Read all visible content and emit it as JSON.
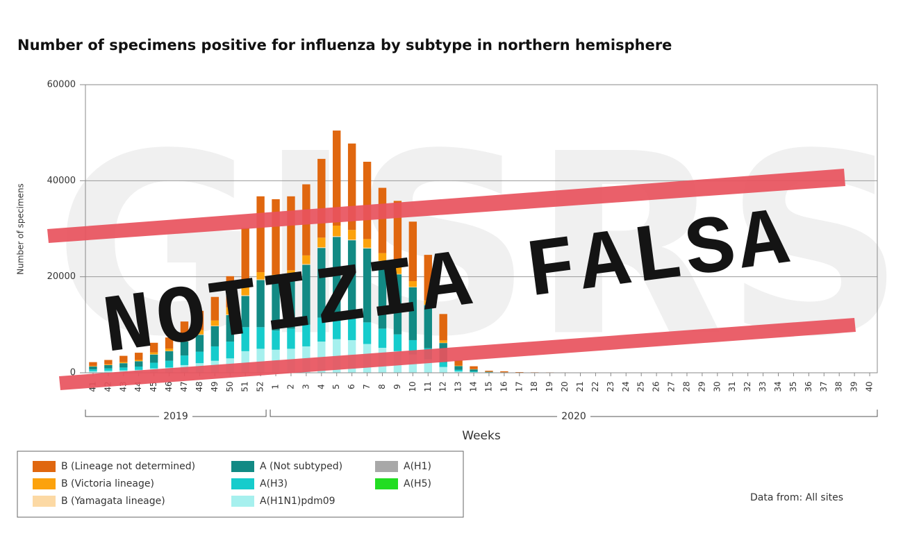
{
  "chart_data": {
    "type": "stacked_bar",
    "title": "Number of specimens positive for influenza by subtype in northern hemisphere",
    "watermark": "GISRS",
    "stamp": "NOTIZIA FALSA",
    "ylabel": "Number of specimens",
    "xlabel": "Weeks",
    "source": "Data from: All sites",
    "categories": [
      "41",
      "42",
      "43",
      "44",
      "45",
      "46",
      "47",
      "48",
      "49",
      "50",
      "51",
      "52",
      "1",
      "2",
      "3",
      "4",
      "5",
      "6",
      "7",
      "8",
      "9",
      "10",
      "11",
      "12",
      "13",
      "14",
      "15",
      "16",
      "17",
      "18",
      "19",
      "20",
      "21",
      "22",
      "23",
      "24",
      "25",
      "26",
      "27",
      "28",
      "29",
      "30",
      "31",
      "32",
      "33",
      "34",
      "35",
      "36",
      "37",
      "38",
      "39",
      "40"
    ],
    "year_groups": [
      {
        "label": "2019",
        "first": "41",
        "last": "52"
      },
      {
        "label": "2020",
        "first": "1",
        "last": "40"
      }
    ],
    "ylim": [
      0,
      60000
    ],
    "yticks": [
      0,
      20000,
      40000,
      60000
    ],
    "grid": true,
    "series": [
      {
        "name": "A(H1N1)pdm09",
        "color": "#a6f0ee",
        "values": [
          300,
          400,
          500,
          600,
          900,
          1100,
          1600,
          2000,
          2500,
          3000,
          4500,
          5000,
          4800,
          5000,
          5500,
          6500,
          7000,
          6800,
          6000,
          5200,
          4500,
          3800,
          2800,
          1200,
          300,
          150,
          50,
          30,
          20,
          10,
          10,
          10,
          0,
          0,
          0,
          0,
          0,
          0,
          0,
          0,
          0,
          0,
          0,
          0,
          0,
          0,
          0,
          0,
          0,
          0,
          0,
          0
        ]
      },
      {
        "name": "A(H3)",
        "color": "#16cccc",
        "values": [
          400,
          500,
          600,
          700,
          1200,
          1400,
          2000,
          2400,
          3000,
          3500,
          5000,
          4500,
          4000,
          4200,
          4500,
          5000,
          5500,
          5000,
          4500,
          4000,
          3500,
          3000,
          2300,
          1000,
          300,
          150,
          50,
          20,
          10,
          10,
          5,
          5,
          0,
          0,
          0,
          0,
          0,
          0,
          0,
          0,
          0,
          0,
          0,
          0,
          0,
          0,
          0,
          0,
          0,
          0,
          0,
          0
        ]
      },
      {
        "name": "A (Not subtyped)",
        "color": "#128a84",
        "values": [
          600,
          700,
          900,
          1100,
          1700,
          2000,
          2900,
          3500,
          4200,
          5500,
          6500,
          9800,
          10000,
          10500,
          12500,
          14500,
          15800,
          15800,
          15400,
          14000,
          12500,
          11000,
          9000,
          4000,
          800,
          400,
          100,
          50,
          30,
          20,
          20,
          20,
          0,
          0,
          0,
          0,
          0,
          0,
          0,
          0,
          0,
          0,
          0,
          0,
          0,
          0,
          0,
          0,
          0,
          0,
          0,
          0
        ]
      },
      {
        "name": "B (Yamagata lineage)",
        "color": "#fcd9a4",
        "values": [
          20,
          20,
          30,
          30,
          50,
          50,
          80,
          100,
          100,
          120,
          150,
          150,
          150,
          150,
          150,
          150,
          150,
          150,
          150,
          120,
          100,
          80,
          60,
          40,
          10,
          10,
          5,
          0,
          0,
          0,
          0,
          0,
          0,
          0,
          0,
          0,
          0,
          0,
          0,
          0,
          0,
          0,
          0,
          0,
          0,
          0,
          0,
          0,
          0,
          0,
          0,
          0
        ]
      },
      {
        "name": "B (Victoria lineage)",
        "color": "#fca20c",
        "values": [
          100,
          150,
          200,
          250,
          400,
          500,
          700,
          900,
          1100,
          1500,
          2000,
          1500,
          1500,
          1500,
          1800,
          2000,
          2200,
          2000,
          1800,
          1600,
          1400,
          1200,
          900,
          500,
          100,
          50,
          20,
          10,
          5,
          0,
          0,
          0,
          0,
          0,
          0,
          0,
          0,
          0,
          0,
          0,
          0,
          0,
          0,
          0,
          0,
          0,
          0,
          0,
          0,
          0,
          0,
          0
        ]
      },
      {
        "name": "B (Lineage not determined)",
        "color": "#e0670f",
        "values": [
          800,
          900,
          1300,
          1500,
          2000,
          2300,
          3400,
          4000,
          4900,
          6500,
          12000,
          15800,
          15700,
          15400,
          14800,
          16400,
          19800,
          18000,
          16100,
          13600,
          13800,
          12400,
          9500,
          5500,
          1100,
          600,
          200,
          200,
          80,
          60,
          50,
          40,
          0,
          0,
          0,
          0,
          0,
          0,
          0,
          0,
          0,
          0,
          0,
          0,
          0,
          0,
          0,
          0,
          0,
          0,
          0,
          0
        ]
      },
      {
        "name": "A(H1)",
        "color": "#a8a8a8",
        "values": [
          0,
          0,
          0,
          0,
          0,
          0,
          0,
          0,
          0,
          0,
          0,
          0,
          0,
          0,
          0,
          0,
          0,
          0,
          0,
          0,
          0,
          0,
          0,
          0,
          0,
          0,
          0,
          0,
          0,
          0,
          0,
          0,
          0,
          0,
          0,
          0,
          0,
          0,
          0,
          0,
          0,
          0,
          0,
          0,
          0,
          0,
          0,
          0,
          0,
          0,
          0,
          0
        ]
      },
      {
        "name": "A(H5)",
        "color": "#22dd22",
        "values": [
          0,
          0,
          0,
          0,
          0,
          0,
          0,
          0,
          0,
          0,
          0,
          0,
          0,
          0,
          0,
          0,
          0,
          0,
          0,
          0,
          0,
          0,
          0,
          0,
          0,
          0,
          0,
          0,
          0,
          0,
          0,
          0,
          0,
          0,
          0,
          0,
          0,
          0,
          0,
          0,
          0,
          0,
          0,
          0,
          0,
          0,
          0,
          0,
          0,
          0,
          0,
          0
        ]
      }
    ]
  }
}
